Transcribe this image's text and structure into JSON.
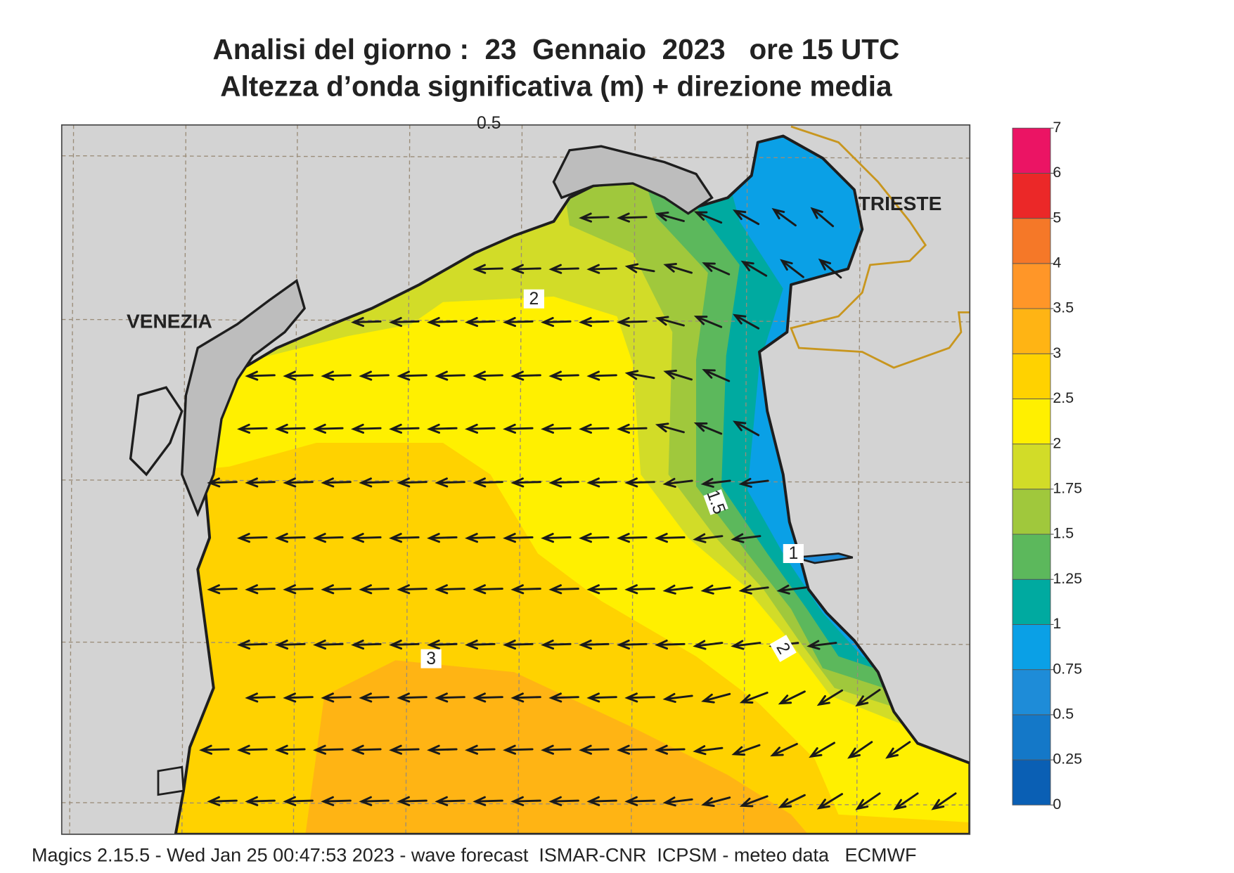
{
  "title": [
    "Analisi del giorno :  23  Gennaio  2023   ore 15 UTC",
    "Altezza d’onda significativa (m) + direzione media"
  ],
  "places": [
    "VENEZIA",
    "TRIESTE"
  ],
  "contour_labels": [
    0.5,
    2,
    1.5,
    1,
    2,
    3
  ],
  "colorbar": {
    "levels": [
      0,
      0.25,
      0.5,
      0.75,
      1,
      1.25,
      1.5,
      1.75,
      2,
      2.5,
      3,
      3.5,
      4,
      5,
      6,
      7
    ],
    "colors": [
      "#0a5fb4",
      "#1478c8",
      "#1e8cd8",
      "#0aa0e6",
      "#00aaa0",
      "#5cb85c",
      "#a0c83c",
      "#d2dc28",
      "#fff000",
      "#ffd200",
      "#ffb414",
      "#ff9628",
      "#f57828",
      "#eb2828",
      "#eb1464"
    ]
  },
  "footer": "Magics 2.15.5 - Wed Jan 25 00:47:53 2023 - wave forecast  ISMAR-CNR  ICPSM - meteo data   ECMWF"
}
